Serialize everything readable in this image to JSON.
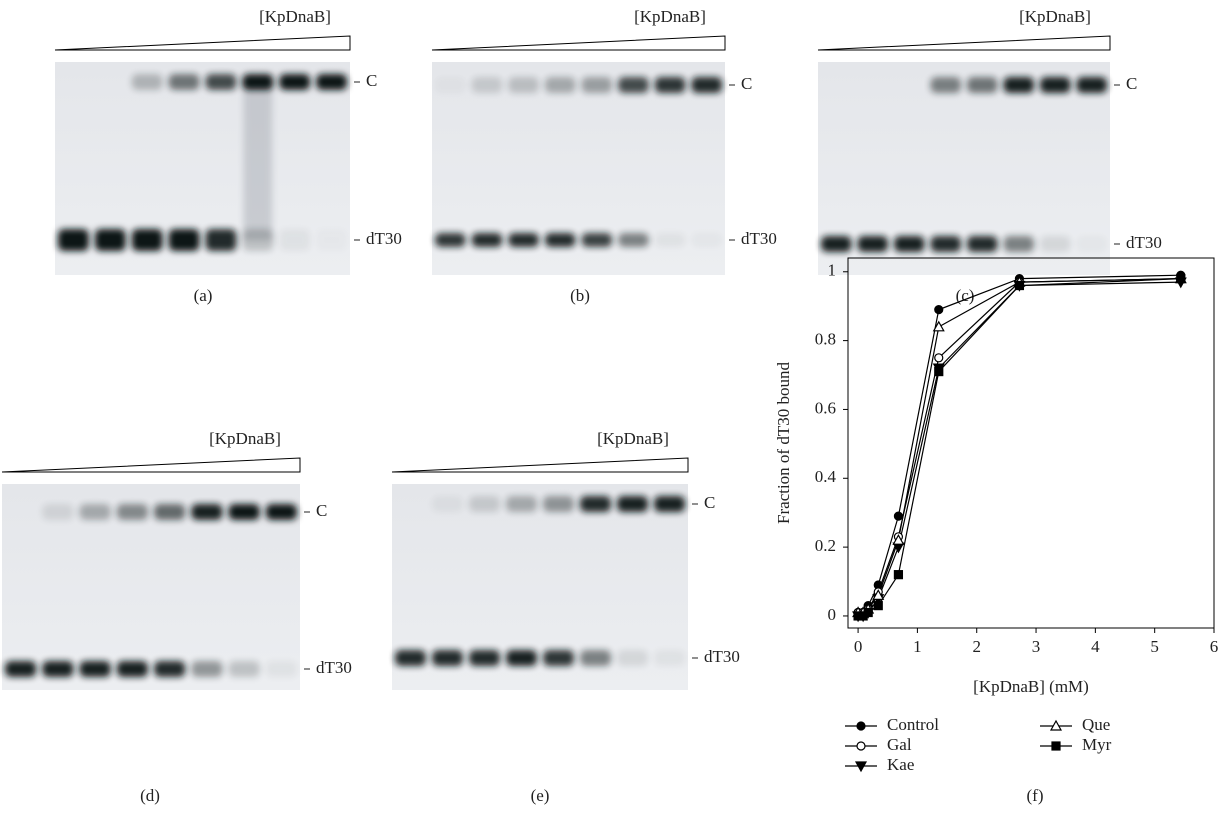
{
  "gels": [
    {
      "title": "[KpDnaB]",
      "upper_band": "C",
      "lower_band": "dT30",
      "caption": "(a)"
    },
    {
      "title": "[KpDnaB]",
      "upper_band": "C",
      "lower_band": "dT30",
      "caption": "(b)"
    },
    {
      "title": "[KpDnaB]",
      "upper_band": "C",
      "lower_band": "dT30",
      "caption": "(c)"
    },
    {
      "title": "[KpDnaB]",
      "upper_band": "C",
      "lower_band": "dT30",
      "caption": "(d)"
    },
    {
      "title": "[KpDnaB]",
      "upper_band": "C",
      "lower_band": "dT30",
      "caption": "(e)"
    }
  ],
  "chart_data": {
    "type": "line",
    "caption": "(f)",
    "xlabel": "[KpDnaB] (mM)",
    "ylabel": "Fraction of dT30 bound",
    "x": [
      0,
      0.085,
      0.17,
      0.34,
      0.68,
      1.36,
      2.72,
      5.44
    ],
    "series": [
      {
        "name": "Control",
        "color": "#000000",
        "marker": "circle-filled",
        "values": [
          0.01,
          0.01,
          0.03,
          0.09,
          0.29,
          0.89,
          0.98,
          0.99
        ]
      },
      {
        "name": "Gal",
        "color": "#000000",
        "marker": "circle-open",
        "values": [
          0.01,
          0.01,
          0.02,
          0.07,
          0.23,
          0.75,
          0.97,
          0.98
        ]
      },
      {
        "name": "Kae",
        "color": "#000000",
        "marker": "triangle-down-filled",
        "values": [
          0,
          0,
          0.01,
          0.05,
          0.2,
          0.72,
          0.96,
          0.97
        ]
      },
      {
        "name": "Que",
        "color": "#000000",
        "marker": "triangle-up-open",
        "values": [
          0.01,
          0.01,
          0.02,
          0.06,
          0.22,
          0.84,
          0.97,
          0.98
        ]
      },
      {
        "name": "Myr",
        "color": "#000000",
        "marker": "square-filled",
        "values": [
          0,
          0,
          0.01,
          0.03,
          0.12,
          0.71,
          0.96,
          0.98
        ]
      }
    ],
    "xlim": [
      -0.17,
      6
    ],
    "ylim": [
      -0.035,
      1.04
    ],
    "xticks": [
      0,
      1,
      2,
      3,
      4,
      5,
      6
    ],
    "yticks": [
      0,
      0.2,
      0.4,
      0.6,
      0.8,
      1
    ]
  }
}
